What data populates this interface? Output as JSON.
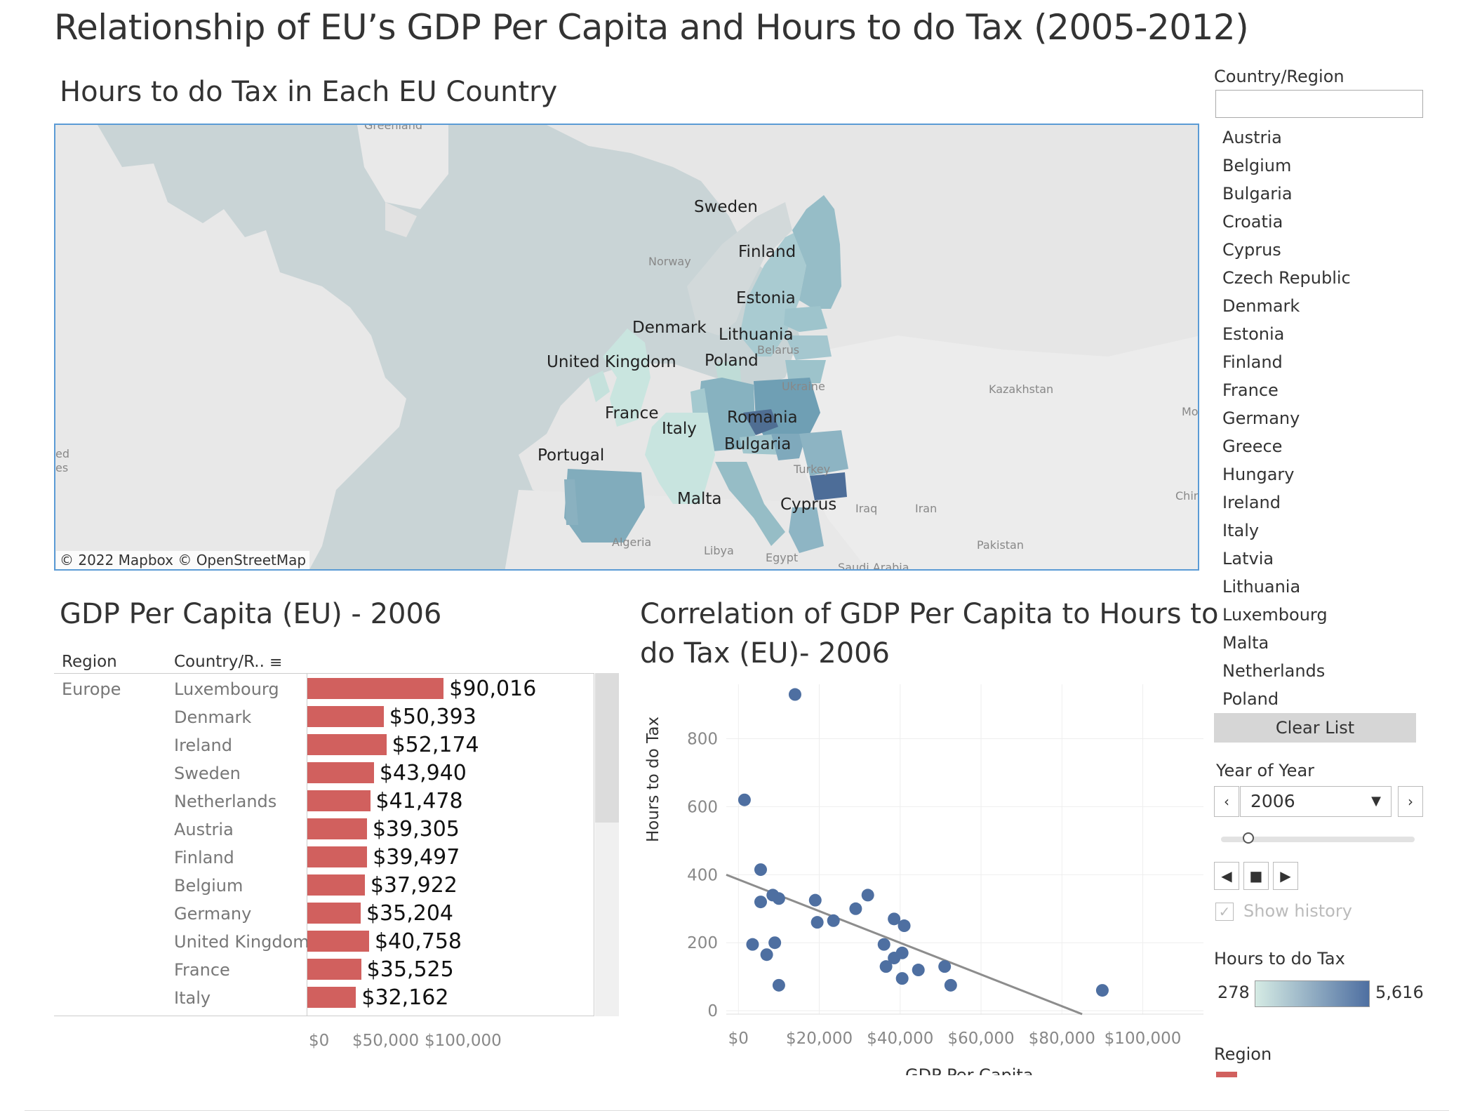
{
  "title": "Relationship of EU’s GDP Per Capita and Hours to do Tax (2005-2012)",
  "map": {
    "title": "Hours to do Tax in Each EU Country",
    "attribution": "© 2022 Mapbox  © OpenStreetMap",
    "country_labels": [
      "Sweden",
      "Finland",
      "Estonia",
      "Denmark",
      "Lithuania",
      "United Kingdom",
      "Poland",
      "France",
      "Romania",
      "Italy",
      "Bulgaria",
      "Portugal",
      "Malta",
      "Cyprus"
    ],
    "background_labels": [
      "Greenland",
      "Norway",
      "Belarus",
      "Ukraine",
      "Kazakhstan",
      "Turkey",
      "Iraq",
      "Iran",
      "Algeria",
      "Libya",
      "Egypt",
      "Pakistan",
      "Saudi Arabia",
      "Mo",
      "Chin",
      "ed",
      "es"
    ]
  },
  "bar_chart": {
    "title": "GDP Per Capita (EU) - 2006",
    "col_region": "Region",
    "col_country": "Country/R..",
    "region_value": "Europe",
    "x_ticks": [
      "$0",
      "$50,000",
      "$100,000"
    ]
  },
  "scatter": {
    "title_line1": "Correlation of GDP Per Capita to Hours to",
    "title_line2": "do Tax (EU)- 2006",
    "xlabel": "GDP Per Capita",
    "ylabel": "Hours to do Tax",
    "x_ticks": [
      "$0",
      "$20,000",
      "$40,000",
      "$60,000",
      "$80,000",
      "$100,000"
    ],
    "y_ticks": [
      "0",
      "200",
      "400",
      "600",
      "800"
    ]
  },
  "chart_data": [
    {
      "type": "bar",
      "title": "GDP Per Capita (EU) - 2006",
      "categories": [
        "Luxembourg",
        "Denmark",
        "Ireland",
        "Sweden",
        "Netherlands",
        "Austria",
        "Finland",
        "Belgium",
        "Germany",
        "United Kingdom",
        "France",
        "Italy"
      ],
      "values": [
        90016,
        50393,
        52174,
        43940,
        41478,
        39305,
        39497,
        37922,
        35204,
        40758,
        35525,
        32162
      ],
      "value_labels": [
        "$90,016",
        "$50,393",
        "$52,174",
        "$43,940",
        "$41,478",
        "$39,305",
        "$39,497",
        "$37,922",
        "$35,204",
        "$40,758",
        "$35,525",
        "$32,162"
      ],
      "xlim": [
        0,
        190000
      ],
      "color": "#d1605e"
    },
    {
      "type": "scatter",
      "title": "Correlation of GDP Per Capita to Hours to do Tax (EU)- 2006",
      "xlabel": "GDP Per Capita",
      "ylabel": "Hours to do Tax",
      "xlim": [
        -3000,
        115000
      ],
      "ylim": [
        -10,
        960
      ],
      "points": [
        [
          14000,
          930
        ],
        [
          1500,
          620
        ],
        [
          5500,
          415
        ],
        [
          8500,
          340
        ],
        [
          5500,
          320
        ],
        [
          10000,
          330
        ],
        [
          19000,
          325
        ],
        [
          32000,
          340
        ],
        [
          19500,
          260
        ],
        [
          23500,
          265
        ],
        [
          29000,
          300
        ],
        [
          38500,
          270
        ],
        [
          41000,
          250
        ],
        [
          3500,
          195
        ],
        [
          9000,
          200
        ],
        [
          7000,
          165
        ],
        [
          36000,
          195
        ],
        [
          38500,
          155
        ],
        [
          40500,
          170
        ],
        [
          36500,
          130
        ],
        [
          44500,
          120
        ],
        [
          40500,
          95
        ],
        [
          51000,
          130
        ],
        [
          52500,
          75
        ],
        [
          10000,
          75
        ],
        [
          90000,
          60
        ]
      ],
      "trend": [
        [
          -3000,
          400
        ],
        [
          85000,
          -10
        ]
      ],
      "color": "#4e6fa1"
    }
  ],
  "filter": {
    "title": "Country/Region",
    "search_placeholder": "",
    "items": [
      "Austria",
      "Belgium",
      "Bulgaria",
      "Croatia",
      "Cyprus",
      "Czech Republic",
      "Denmark",
      "Estonia",
      "Finland",
      "France",
      "Germany",
      "Greece",
      "Hungary",
      "Ireland",
      "Italy",
      "Latvia",
      "Lithuania",
      "Luxembourg",
      "Malta",
      "Netherlands",
      "Poland"
    ],
    "clear_label": "Clear List"
  },
  "year": {
    "title": "Year of Year",
    "value": "2006",
    "prev": "‹",
    "next": "›",
    "show_history": "Show history",
    "slider_fraction": 0.14
  },
  "legend": {
    "title": "Hours to do Tax",
    "min": "278",
    "max": "5,616",
    "color_low": "#d5ebe4",
    "color_high": "#4e6fa1"
  },
  "region_legend": {
    "title": "Region"
  }
}
